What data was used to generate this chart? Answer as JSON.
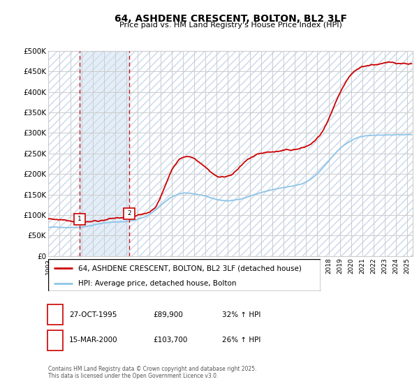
{
  "title": "64, ASHDENE CRESCENT, BOLTON, BL2 3LF",
  "subtitle": "Price paid vs. HM Land Registry's House Price Index (HPI)",
  "ylabel_ticks": [
    "£0",
    "£50K",
    "£100K",
    "£150K",
    "£200K",
    "£250K",
    "£300K",
    "£350K",
    "£400K",
    "£450K",
    "£500K"
  ],
  "ylim": [
    0,
    500000
  ],
  "xlim_start": 1993.0,
  "xlim_end": 2025.5,
  "sale1_x": 1995.82,
  "sale1_y": 89900,
  "sale1_label": "1",
  "sale1_date": "27-OCT-1995",
  "sale1_price": "£89,900",
  "sale1_hpi": "32% ↑ HPI",
  "sale2_x": 2000.21,
  "sale2_y": 103700,
  "sale2_label": "2",
  "sale2_date": "15-MAR-2000",
  "sale2_price": "£103,700",
  "sale2_hpi": "26% ↑ HPI",
  "legend_line1": "64, ASHDENE CRESCENT, BOLTON, BL2 3LF (detached house)",
  "legend_line2": "HPI: Average price, detached house, Bolton",
  "footer": "Contains HM Land Registry data © Crown copyright and database right 2025.\nThis data is licensed under the Open Government Licence v3.0.",
  "hpi_color": "#8ec4e8",
  "price_color": "#cc0000",
  "vline_color": "#cc0000",
  "hatch_color": "#c8d8ec",
  "grid_color": "#cccccc"
}
